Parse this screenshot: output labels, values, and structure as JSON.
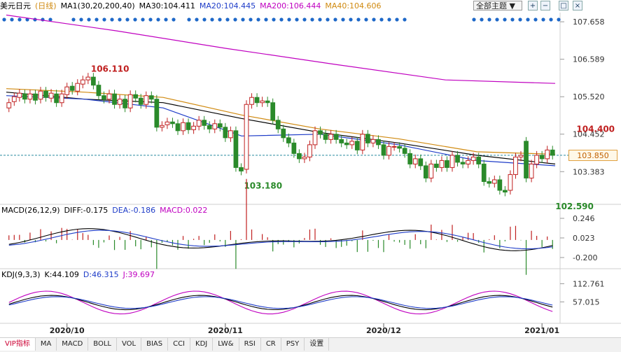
{
  "header": {
    "symbol": "美元日元",
    "period": "日线",
    "ma_label": "MA1(30,20,200,40)",
    "ma30": "MA30:104.411",
    "ma20": "MA20:104.445",
    "ma200": "MA200:106.444",
    "ma40": "MA40:104.606",
    "theme_label": "全部主题",
    "colors": {
      "ma30": "#000000",
      "ma20": "#1e3cc8",
      "ma200": "#c000c0",
      "ma40": "#d08a10",
      "up": "#c02020",
      "down": "#2a8a2a"
    }
  },
  "macd_header": {
    "params": "MACD(26,12,9)",
    "dif": "DIFF:-0.175",
    "dea": "DEA:-0.186",
    "macd": "MACD:0.022"
  },
  "kdj_header": {
    "params": "KDJ(9,3,3)",
    "k": "K:44.109",
    "d": "D:46.315",
    "j": "J:39.697"
  },
  "current_price": "103.850",
  "tabs": [
    "VIP指标",
    "MA",
    "MACD",
    "BOLL",
    "VOL",
    "BIAS",
    "CCI",
    "KDJ",
    "LW&",
    "RSI",
    "CR",
    "PSY",
    "设置"
  ],
  "chart_data": {
    "type": "candlestick",
    "x_ticks": [
      "2020/10",
      "2020/11",
      "2020/12",
      "2021/01"
    ],
    "x_tick_index": [
      11,
      41,
      71,
      101
    ],
    "price_axis": {
      "ticks": [
        107.658,
        106.589,
        105.52,
        104.452,
        103.383
      ],
      "ylim": [
        102.45,
        107.8
      ]
    },
    "annotations": [
      {
        "label": "106.110",
        "index": 15,
        "value": 106.11
      },
      {
        "label": "103.180",
        "index": 44,
        "value": 103.18
      },
      {
        "label": "104.400",
        "index": 107,
        "value": 104.4
      },
      {
        "label": "102.590",
        "index": 103,
        "value": 102.59
      }
    ],
    "candles_close": [
      105.35,
      105.52,
      105.62,
      105.45,
      105.6,
      105.42,
      105.68,
      105.5,
      105.62,
      105.35,
      105.6,
      105.8,
      105.7,
      105.9,
      106.0,
      106.08,
      105.85,
      105.55,
      105.45,
      105.6,
      105.3,
      105.45,
      105.2,
      105.58,
      105.48,
      105.3,
      105.55,
      105.45,
      104.65,
      104.7,
      104.8,
      104.75,
      104.55,
      104.78,
      104.58,
      104.68,
      104.85,
      104.7,
      104.6,
      104.75,
      104.65,
      104.35,
      104.55,
      103.5,
      103.4,
      105.3,
      105.5,
      105.35,
      105.4,
      105.35,
      104.85,
      104.6,
      104.35,
      104.2,
      103.9,
      103.75,
      103.8,
      104.15,
      104.55,
      104.45,
      104.3,
      104.45,
      104.3,
      104.2,
      104.15,
      104.25,
      104.0,
      104.45,
      104.2,
      104.3,
      104.15,
      103.85,
      104.1,
      104.1,
      104.05,
      103.9,
      103.6,
      103.75,
      103.55,
      103.2,
      103.6,
      103.5,
      103.7,
      103.5,
      103.85,
      103.65,
      103.6,
      103.7,
      103.8,
      103.6,
      103.1,
      103.05,
      103.15,
      102.85,
      102.8,
      103.3,
      103.8,
      103.85,
      103.2,
      103.6,
      103.85,
      103.75,
      104.0,
      103.85
    ],
    "candles_open": [
      105.2,
      105.38,
      105.5,
      105.6,
      105.45,
      105.6,
      105.45,
      105.68,
      105.48,
      105.6,
      105.35,
      105.58,
      105.82,
      105.68,
      105.88,
      106.0,
      106.08,
      105.85,
      105.55,
      105.45,
      105.6,
      105.3,
      105.45,
      105.2,
      105.58,
      105.48,
      105.3,
      105.55,
      105.45,
      104.65,
      104.72,
      104.8,
      104.75,
      104.55,
      104.78,
      104.58,
      104.68,
      104.85,
      104.7,
      104.6,
      104.75,
      104.65,
      104.35,
      104.55,
      103.5,
      103.45,
      105.3,
      105.5,
      105.35,
      105.4,
      105.35,
      104.85,
      104.6,
      104.35,
      104.2,
      103.9,
      103.75,
      103.8,
      104.15,
      104.55,
      104.45,
      104.3,
      104.45,
      104.3,
      104.2,
      104.15,
      104.25,
      104.0,
      104.45,
      104.2,
      104.3,
      104.15,
      103.85,
      104.1,
      104.1,
      104.05,
      103.9,
      103.6,
      103.75,
      103.55,
      103.2,
      103.6,
      103.5,
      103.7,
      103.5,
      103.85,
      103.65,
      103.6,
      103.7,
      103.8,
      103.6,
      103.1,
      103.05,
      103.15,
      102.85,
      102.85,
      103.3,
      103.8,
      104.25,
      103.2,
      103.6,
      103.85,
      103.75,
      104.0
    ],
    "ma_series": [
      {
        "name": "MA200",
        "values": [
          107.85,
          107.4,
          106.9,
          106.44,
          106.0,
          105.9
        ]
      },
      {
        "name": "MA40",
        "values": [
          105.75,
          105.65,
          105.5,
          105.0,
          104.6,
          104.32,
          103.95,
          103.88
        ]
      },
      {
        "name": "MA30",
        "values": [
          105.65,
          105.45,
          105.35,
          104.9,
          104.5,
          104.2,
          103.85,
          103.6
        ]
      },
      {
        "name": "MA20",
        "values": [
          105.55,
          105.45,
          105.2,
          104.4,
          104.45,
          104.15,
          103.7,
          103.55
        ]
      }
    ],
    "macd_axis": {
      "ticks": [
        0.246,
        0.023,
        -0.2
      ]
    },
    "kdj_axis": {
      "ticks": [
        112.761,
        57.015
      ]
    }
  }
}
